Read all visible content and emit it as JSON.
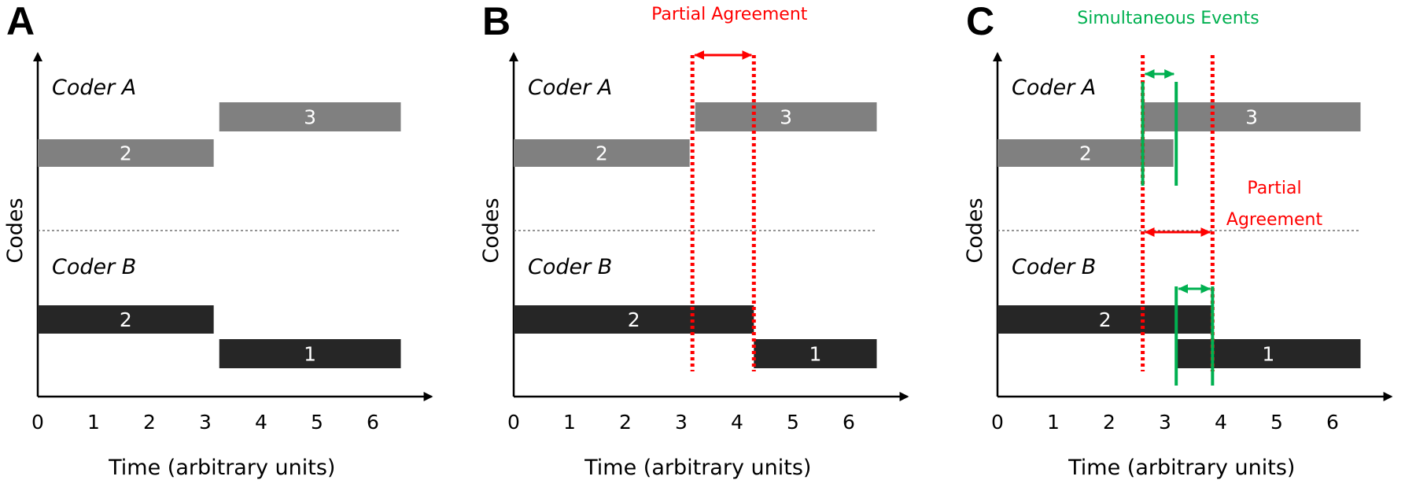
{
  "colors": {
    "coder_a": "#808080",
    "coder_b": "#262626",
    "agreement": "#ff0000",
    "simultaneous": "#00b050"
  },
  "shared": {
    "x_ticks": [
      0,
      1,
      2,
      3,
      4,
      5,
      6
    ],
    "xlabel": "Time (arbitrary units)",
    "ylabel": "Codes",
    "coder_a_label": "Coder A",
    "coder_b_label": "Coder B"
  },
  "panels": [
    {
      "letter": "A",
      "coder_a": [
        {
          "code": "2",
          "start": 0,
          "end": 3.15
        },
        {
          "code": "3",
          "start": 3.25,
          "end": 6.5
        }
      ],
      "coder_b": [
        {
          "code": "2",
          "start": 0,
          "end": 3.15
        },
        {
          "code": "1",
          "start": 3.25,
          "end": 6.5
        }
      ]
    },
    {
      "letter": "B",
      "annotation_top": "Partial Agreement",
      "coder_a": [
        {
          "code": "2",
          "start": 0,
          "end": 3.15
        },
        {
          "code": "3",
          "start": 3.25,
          "end": 6.5
        }
      ],
      "coder_b": [
        {
          "code": "2",
          "start": 0,
          "end": 4.3
        },
        {
          "code": "1",
          "start": 4.3,
          "end": 6.5
        }
      ],
      "red_lines": [
        3.2,
        4.3
      ]
    },
    {
      "letter": "C",
      "annotation_top": "Simultaneous Events",
      "annotation_mid": [
        "Partial",
        "Agreement"
      ],
      "coder_a": [
        {
          "code": "2",
          "start": 0,
          "end": 3.15
        },
        {
          "code": "3",
          "start": 2.6,
          "end": 6.5
        }
      ],
      "coder_b": [
        {
          "code": "2",
          "start": 0,
          "end": 3.85
        },
        {
          "code": "1",
          "start": 3.2,
          "end": 6.5
        }
      ],
      "red_lines": [
        2.6,
        3.85
      ],
      "green_lines": [
        2.6,
        3.2,
        3.85
      ]
    }
  ]
}
